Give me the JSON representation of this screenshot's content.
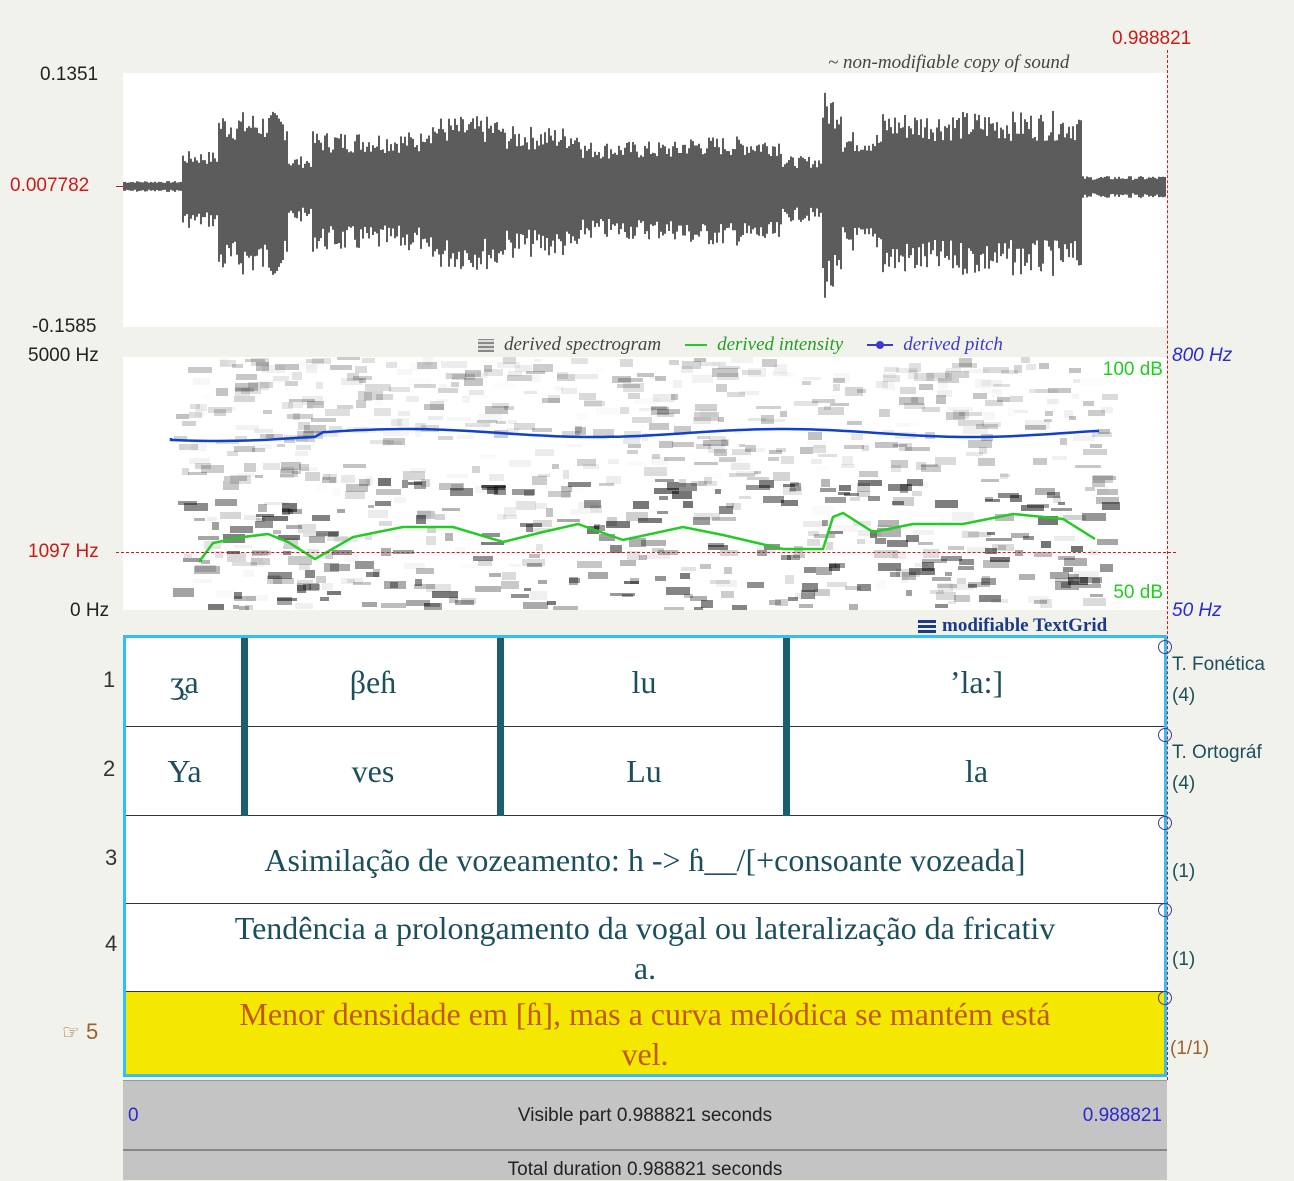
{
  "waveform": {
    "cursor_time": "0.988821",
    "y_max": "0.1351",
    "y_mid": "0.007782",
    "y_min": "-0.1585",
    "caption": "~ non-modifiable copy of sound"
  },
  "spectrogram": {
    "freq_max": "5000 Hz",
    "freq_cursor": "1097 Hz",
    "freq_min": "0 Hz",
    "legend_spectrogram": "derived spectrogram",
    "legend_intensity": "derived intensity",
    "legend_pitch": "derived pitch",
    "pitch_max": "800 Hz",
    "pitch_min": "50 Hz",
    "intensity_max": "100 dB",
    "intensity_min": "50 dB",
    "colors": {
      "pitch": "#1040d0",
      "intensity": "#22cc22",
      "cursor": "#cc1a1a"
    }
  },
  "textgrid": {
    "caption": "modifiable TextGrid",
    "tiers": [
      {
        "number": "1",
        "name": "T. Fonética",
        "count": "(4)",
        "intervals": [
          "ʒ̥a",
          "βeɦ",
          "lu",
          "’la:]"
        ]
      },
      {
        "number": "2",
        "name": "T. Ortográf",
        "count": "(4)",
        "intervals": [
          "Ya",
          "ves",
          "Lu",
          "la"
        ]
      },
      {
        "number": "3",
        "count": "(1)",
        "text": "Asimilação de vozeamento: h -> ɦ__/[+consoante vozeada]"
      },
      {
        "number": "4",
        "count": "(1)",
        "line1": "Tendência a prolongamento da vogal ou lateralização da fricativ",
        "line2": "a."
      },
      {
        "number": "5",
        "count": "(1/1)",
        "selected": true,
        "line1": "Menor densidade em [ɦ], mas a curva melódica se mantém está",
        "line2": "vel."
      }
    ]
  },
  "footer": {
    "visible_start": "0",
    "visible_label": "Visible part 0.988821 seconds",
    "visible_end": "0.988821",
    "total_label": "Total duration 0.988821 seconds"
  }
}
